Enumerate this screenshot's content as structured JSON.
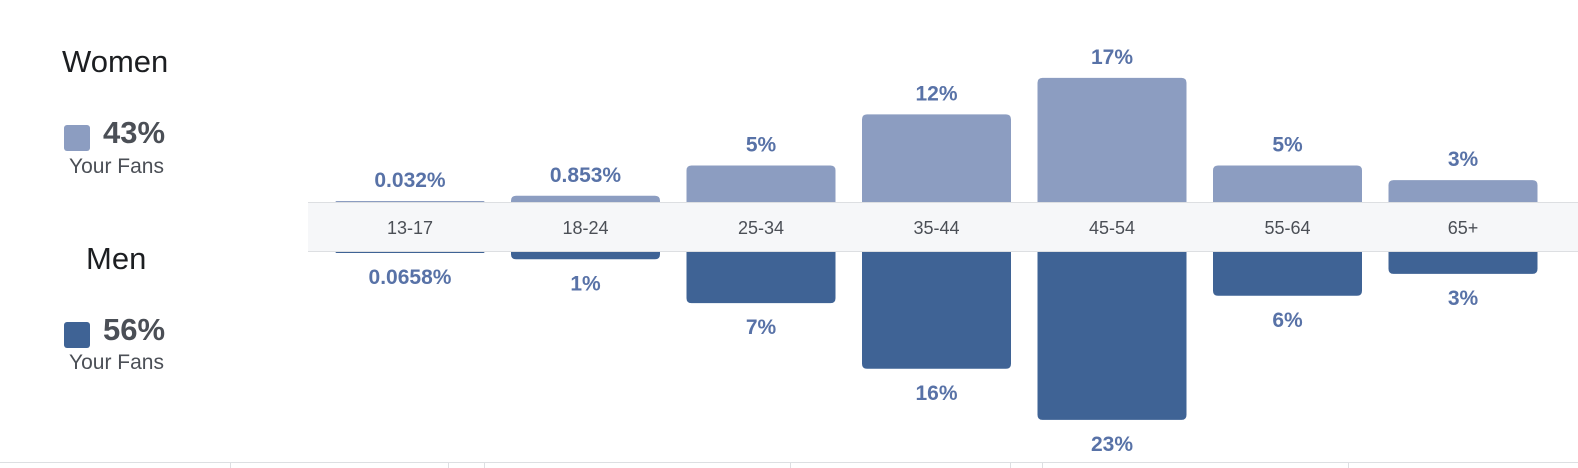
{
  "legend": {
    "women": {
      "heading": "Women",
      "percent": "43%",
      "sublabel": "Your Fans"
    },
    "men": {
      "heading": "Men",
      "percent": "56%",
      "sublabel": "Your Fans"
    }
  },
  "colors": {
    "women": "#8c9dc1",
    "men": "#3f6395",
    "value_label": "#5872a7",
    "band_bg": "#f6f7f9",
    "band_border": "#dddfe2",
    "category_text": "#4b4f56"
  },
  "chart_data": {
    "type": "bar",
    "categories": [
      "13-17",
      "18-24",
      "25-34",
      "35-44",
      "45-54",
      "55-64",
      "65+"
    ],
    "series": [
      {
        "name": "Women",
        "values": [
          0.032,
          0.853,
          5,
          12,
          17,
          5,
          3
        ],
        "labels": [
          "0.032%",
          "0.853%",
          "5%",
          "12%",
          "17%",
          "5%",
          "3%"
        ]
      },
      {
        "name": "Men",
        "values": [
          0.0658,
          1,
          7,
          16,
          23,
          6,
          3
        ],
        "labels": [
          "0.0658%",
          "1%",
          "7%",
          "16%",
          "23%",
          "6%",
          "3%"
        ]
      }
    ]
  }
}
